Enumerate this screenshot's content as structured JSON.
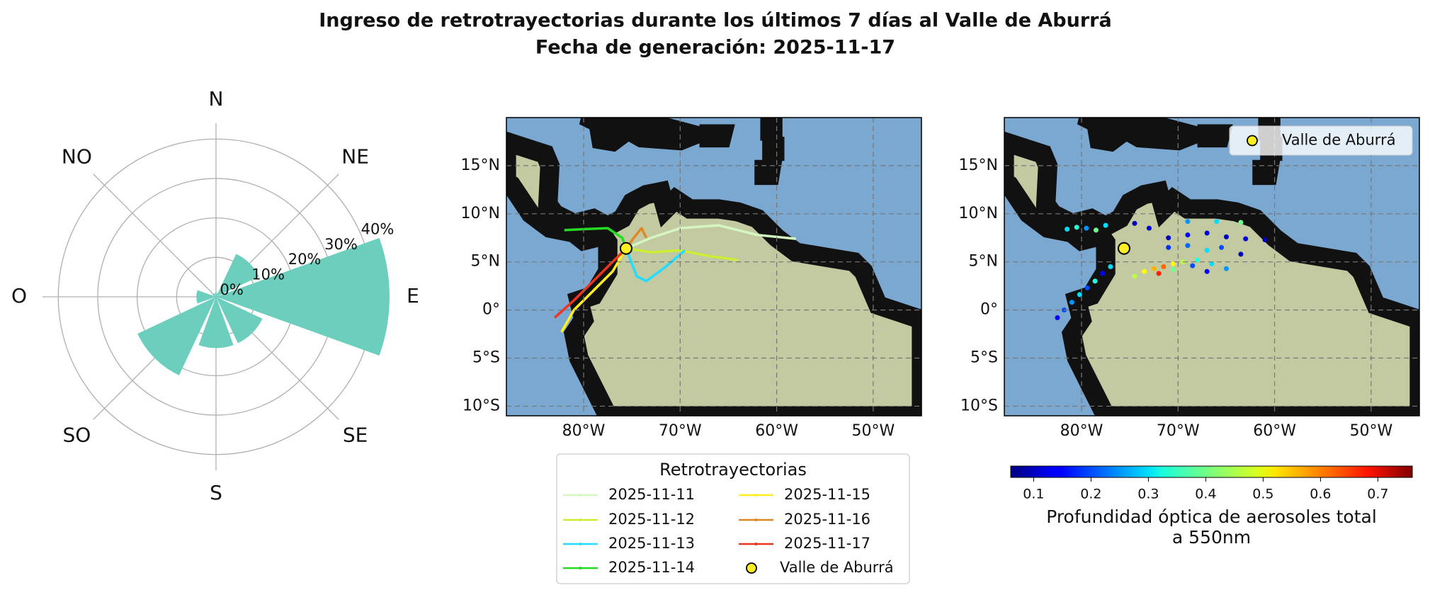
{
  "title": "Ingreso de retrotrayectorias durante los últimos 7 días al Valle de Aburrá",
  "subtitle": "Fecha de generación: 2025-11-17",
  "chart_data": [
    {
      "type": "polar_bar",
      "categories": [
        "N",
        "NE",
        "E",
        "SE",
        "S",
        "SO",
        "O",
        "NO"
      ],
      "values": [
        1,
        12,
        44,
        13,
        13,
        22,
        5,
        1
      ],
      "color": "#6ccfbd",
      "rlim": [
        0,
        44
      ],
      "rticks": [
        {
          "value": 0,
          "label": "0%"
        },
        {
          "value": 10,
          "label": "10%"
        },
        {
          "value": 20,
          "label": "20%"
        },
        {
          "value": 30,
          "label": "30%"
        },
        {
          "value": 40,
          "label": "40%"
        }
      ]
    },
    {
      "type": "trajectory_map",
      "xlim": [
        -88,
        -45
      ],
      "ylim": [
        -11,
        20
      ],
      "xticks": [
        {
          "value": -80,
          "label": "80°W"
        },
        {
          "value": -70,
          "label": "70°W"
        },
        {
          "value": -60,
          "label": "60°W"
        },
        {
          "value": -50,
          "label": "50°W"
        }
      ],
      "yticks": [
        {
          "value": 15,
          "label": "15°N"
        },
        {
          "value": 10,
          "label": "10°N"
        },
        {
          "value": 5,
          "label": "5°N"
        },
        {
          "value": 0,
          "label": "0°"
        },
        {
          "value": -5,
          "label": "5°S"
        },
        {
          "value": -10,
          "label": "10°S"
        }
      ],
      "grid": true,
      "legend_title": "Retrotrayectorias",
      "series": [
        {
          "name": "2025-11-11",
          "color": "#d4f7c0",
          "x": [
            -75.6,
            -73,
            -70,
            -66,
            -62,
            -58
          ],
          "values": [
            6.4,
            7.5,
            8.5,
            8.8,
            7.8,
            7.4
          ]
        },
        {
          "name": "2025-11-12",
          "color": "#ccee33",
          "x": [
            -75.6,
            -73,
            -70,
            -67,
            -64
          ],
          "values": [
            6.4,
            6,
            6.2,
            5.6,
            5.2
          ]
        },
        {
          "name": "2025-11-13",
          "color": "#22ddff",
          "x": [
            -75.6,
            -74.5,
            -73.5,
            -71.5,
            -69.5
          ],
          "values": [
            6.4,
            3.5,
            3,
            4.5,
            6.2
          ]
        },
        {
          "name": "2025-11-14",
          "color": "#22dd22",
          "x": [
            -75.6,
            -76,
            -77.5,
            -80,
            -82
          ],
          "values": [
            6.4,
            7.5,
            8.5,
            8.4,
            8.3
          ]
        },
        {
          "name": "2025-11-15",
          "color": "#ffee22",
          "x": [
            -75.6,
            -77,
            -79,
            -81,
            -82.3
          ],
          "values": [
            6.4,
            4,
            2,
            0,
            -2.3
          ]
        },
        {
          "name": "2025-11-16",
          "color": "#dd8822",
          "x": [
            -75.6,
            -74.8,
            -74,
            -73.5
          ],
          "values": [
            6.4,
            7.5,
            8.5,
            7.5
          ]
        },
        {
          "name": "2025-11-17",
          "color": "#ee3322",
          "x": [
            -75.6,
            -77,
            -79,
            -81,
            -83
          ],
          "values": [
            6.4,
            5,
            3,
            1,
            -0.8
          ]
        }
      ],
      "point": {
        "name": "Valle de Aburrá",
        "x": -75.6,
        "y": 6.4,
        "color": "#ffee22"
      }
    },
    {
      "type": "aod_map",
      "xlim": [
        -88,
        -45
      ],
      "ylim": [
        -11,
        20
      ],
      "xticks": [
        {
          "value": -80,
          "label": "80°W"
        },
        {
          "value": -70,
          "label": "70°W"
        },
        {
          "value": -60,
          "label": "60°W"
        },
        {
          "value": -50,
          "label": "50°W"
        }
      ],
      "yticks": [
        {
          "value": 15,
          "label": "15°N"
        },
        {
          "value": 10,
          "label": "10°N"
        },
        {
          "value": 5,
          "label": "5°N"
        },
        {
          "value": 0,
          "label": "0°"
        },
        {
          "value": -5,
          "label": "5°S"
        },
        {
          "value": -10,
          "label": "10°S"
        }
      ],
      "grid": true,
      "x": [
        -82.5,
        -81.8,
        -81,
        -80.2,
        -79.4,
        -78.6,
        -77.8,
        -77,
        -81.5,
        -80.5,
        -79.5,
        -78.5,
        -77.5,
        -74.5,
        -73,
        -71,
        -69,
        -67,
        -65,
        -63,
        -61,
        -69,
        -66,
        -63.5,
        -74.5,
        -73.5,
        -72.5,
        -71.5,
        -70.5,
        -69.5,
        -68,
        -66.5,
        -65,
        -72,
        -70.5,
        -68.5,
        -67,
        -65.5,
        -63.5,
        -71,
        -69,
        -67
      ],
      "y": [
        -0.8,
        0,
        0.8,
        1.6,
        2.3,
        3,
        3.8,
        4.5,
        8.4,
        8.6,
        8.5,
        8.3,
        8.8,
        9,
        8.5,
        7.5,
        7.8,
        8,
        7.6,
        7.4,
        7.3,
        9.2,
        9.2,
        9.1,
        3.5,
        4,
        4.3,
        4.5,
        4.8,
        5,
        5.2,
        4.8,
        4.3,
        3.8,
        4.2,
        4.6,
        4,
        6.5,
        5.8,
        6.5,
        6.7,
        6.2
      ],
      "values": [
        0.15,
        0.2,
        0.25,
        0.3,
        0.2,
        0.35,
        0.15,
        0.3,
        0.3,
        0.35,
        0.25,
        0.4,
        0.3,
        0.1,
        0.12,
        0.1,
        0.15,
        0.12,
        0.1,
        0.12,
        0.1,
        0.25,
        0.3,
        0.4,
        0.45,
        0.5,
        0.55,
        0.6,
        0.5,
        0.45,
        0.35,
        0.3,
        0.25,
        0.65,
        0.4,
        0.2,
        0.15,
        0.2,
        0.1,
        0.18,
        0.22,
        0.3
      ],
      "clim": [
        0.06,
        0.76
      ],
      "cticks": [
        0.1,
        0.2,
        0.3,
        0.4,
        0.5,
        0.6,
        0.7
      ],
      "colormap": "jet",
      "colorbar_label": [
        "Profundidad óptica de aerosoles total",
        "a 550nm"
      ],
      "legend": "upper right",
      "point": {
        "name": "Valle de Aburrá",
        "x": -75.6,
        "y": 6.4,
        "color": "#ffee22"
      }
    }
  ]
}
